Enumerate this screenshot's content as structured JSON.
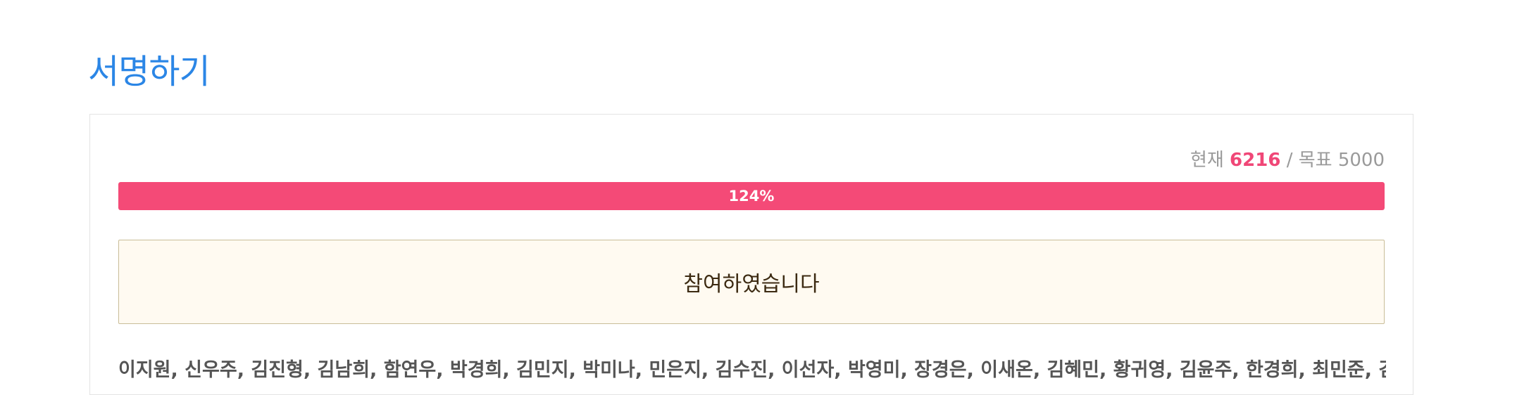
{
  "page": {
    "title": "서명하기"
  },
  "counter": {
    "current_label": "현재",
    "current_value": "6216",
    "separator": "/",
    "goal_label": "목표",
    "goal_value": "5000"
  },
  "progress": {
    "percent_label": "124%",
    "fill_fraction": 1.0
  },
  "status": {
    "participated_text": "참여하였습니다"
  },
  "signers": {
    "text": "이지원, 신우주, 김진형, 김남희, 함연우, 박경희, 김민지, 박미나, 민은지, 김수진, 이선자, 박영미, 장경은, 이새온, 김혜민, 황귀영, 김윤주, 한경희, 최민준, 김승윤, 박수"
  },
  "colors": {
    "title": "#2b86e6",
    "progress_fill": "#f44a77",
    "current_value": "#f04777",
    "box_background": "#fffaf1",
    "box_border": "#c9bd98"
  }
}
